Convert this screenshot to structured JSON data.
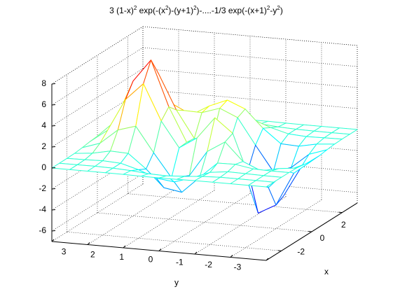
{
  "chart_data": {
    "type": "mesh",
    "title": [
      "3 (1-x)",
      "2",
      " exp(-(x",
      "2",
      ")-(y+1)",
      "2",
      ")-....-1/3 exp(-(x+1)",
      "2",
      "-y",
      "2",
      ")"
    ],
    "xlabel": "x",
    "ylabel": "y",
    "x": [
      -3,
      -2.5,
      -2,
      -1.5,
      -1,
      -0.5,
      0,
      0.5,
      1,
      1.5,
      2,
      2.5,
      3
    ],
    "y": [
      -3,
      -2.5,
      -2,
      -1.5,
      -1,
      -0.5,
      0,
      0.5,
      1,
      1.5,
      2,
      2.5,
      3
    ],
    "z": [
      [
        0,
        0,
        0,
        0,
        -0.01,
        -0.03,
        -0.04,
        -0.03,
        -0.01,
        0,
        0,
        0,
        0
      ],
      [
        0,
        0,
        0.01,
        0.01,
        -0.06,
        -0.2,
        -0.3,
        -0.25,
        -0.11,
        -0.02,
        0.01,
        0,
        0
      ],
      [
        0,
        0.01,
        0.05,
        0.08,
        -0.13,
        -0.8,
        -1.33,
        -1.12,
        -0.48,
        -0.01,
        0.08,
        0.03,
        0.01
      ],
      [
        0,
        0,
        0.05,
        0.33,
        0.3,
        -1.21,
        -2.77,
        -2.49,
        -0.86,
        0.48,
        0.55,
        0.19,
        0.03
      ],
      [
        -0.03,
        -0.23,
        -0.59,
        0.15,
        1.86,
        0.8,
        -1.65,
        -2,
        0.23,
        2.61,
        2.1,
        0.69,
        0.11
      ],
      [
        -0.14,
        -0.92,
        -2.64,
        -2.19,
        2.22,
        3.55,
        1.48,
        0.39,
        2.79,
        6.2,
        4.55,
        1.47,
        0.23
      ],
      [
        -0.25,
        -1.57,
        -4.75,
        -5.68,
        -0.72,
        2,
        0.98,
        0.46,
        3.69,
        8,
        5.85,
        1.88,
        0.3
      ],
      [
        -0.22,
        -1.41,
        -4.34,
        -5.76,
        -2.22,
        0.39,
        0.37,
        0.38,
        2.93,
        6.25,
        4.56,
        1.47,
        0.23
      ],
      [
        -0.11,
        -0.69,
        -2.1,
        -2.64,
        -0.27,
        2.2,
        2.94,
        2.38,
        2.43,
        3.25,
        2.21,
        0.7,
        0.11
      ],
      [
        -0.03,
        -0.18,
        -0.53,
        -0.44,
        0.88,
        2.56,
        3.27,
        2.56,
        1.58,
        1.19,
        0.68,
        0.2,
        0.03
      ],
      [
        0,
        -0.03,
        -0.06,
        0.04,
        0.5,
        1.12,
        1.41,
        1.09,
        0.58,
        0.29,
        0.13,
        0.04,
        0.01
      ],
      [
        0,
        0,
        0,
        0.03,
        0.11,
        0.24,
        0.3,
        0.23,
        0.11,
        0.05,
        0.02,
        0,
        0
      ],
      [
        0,
        0,
        0,
        0,
        0.01,
        0.03,
        0.03,
        0.03,
        0.01,
        0,
        0,
        0,
        0
      ]
    ],
    "xlim": [
      -3,
      3
    ],
    "ylim": [
      -3,
      3
    ],
    "zlim": [
      -7,
      8
    ],
    "xticks": [
      -2,
      0,
      2
    ],
    "yticks": [
      -3,
      -2,
      -1,
      0,
      1,
      2,
      3
    ],
    "zticks": [
      -6,
      -4,
      -2,
      0,
      2,
      4,
      6,
      8
    ],
    "grid": true,
    "colormap": "jet"
  }
}
